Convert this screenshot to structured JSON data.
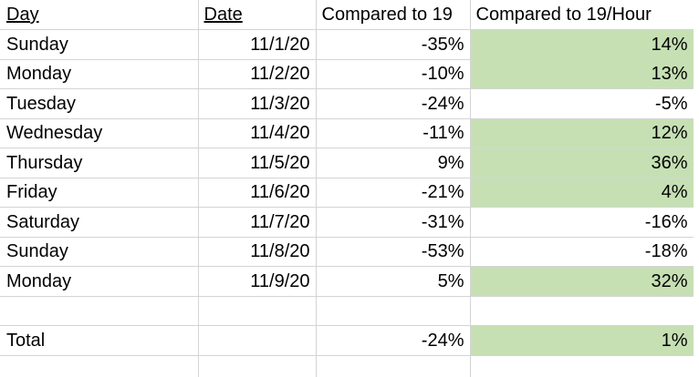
{
  "headers": {
    "day": "Day",
    "date": "Date",
    "compared": "Compared to 19",
    "compared_hour": "Compared to 19/Hour"
  },
  "rows": [
    {
      "day": "Sunday",
      "date": "11/1/20",
      "compared": "-35%",
      "compared_hour": "14%"
    },
    {
      "day": "Monday",
      "date": "11/2/20",
      "compared": "-10%",
      "compared_hour": "13%"
    },
    {
      "day": "Tuesday",
      "date": "11/3/20",
      "compared": "-24%",
      "compared_hour": "-5%"
    },
    {
      "day": "Wednesday",
      "date": "11/4/20",
      "compared": "-11%",
      "compared_hour": "12%"
    },
    {
      "day": "Thursday",
      "date": "11/5/20",
      "compared": "9%",
      "compared_hour": "36%"
    },
    {
      "day": "Friday",
      "date": "11/6/20",
      "compared": "-21%",
      "compared_hour": "4%"
    },
    {
      "day": "Saturday",
      "date": "11/7/20",
      "compared": "-31%",
      "compared_hour": "-16%"
    },
    {
      "day": "Sunday",
      "date": "11/8/20",
      "compared": "-53%",
      "compared_hour": "-18%"
    },
    {
      "day": "Monday",
      "date": "11/9/20",
      "compared": "5%",
      "compared_hour": "32%"
    }
  ],
  "total": {
    "label": "Total",
    "compared": "-24%",
    "compared_hour": "1%"
  },
  "colors": {
    "highlight_fill": "#c6e0b4",
    "positive_text": "#00b050",
    "gridline": "#d4d4d4"
  }
}
